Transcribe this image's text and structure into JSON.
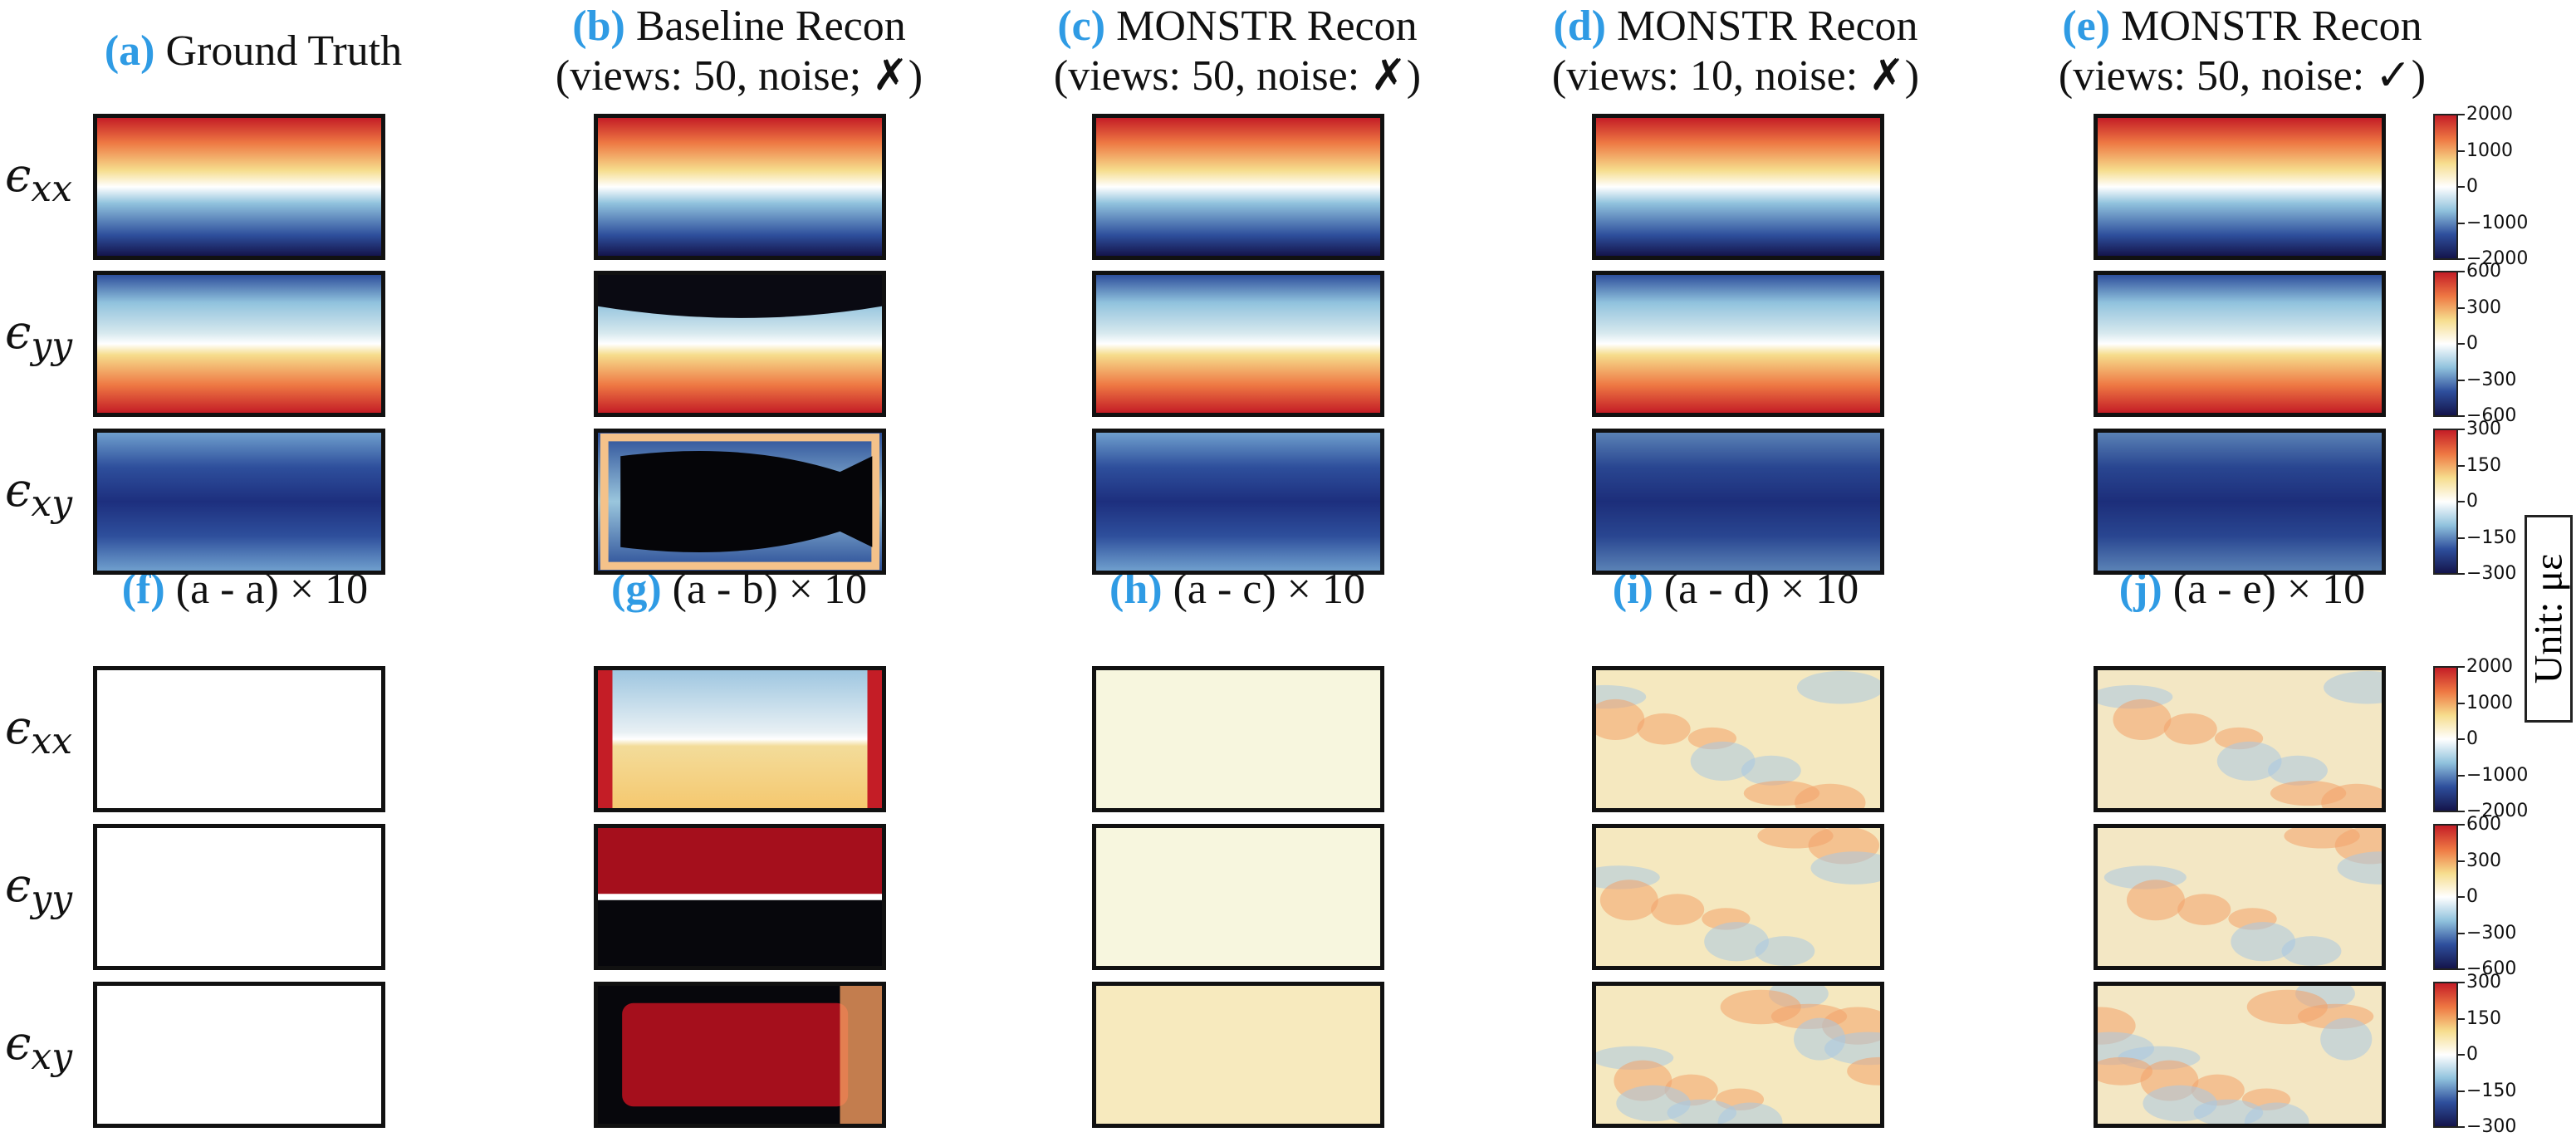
{
  "columns_top": [
    {
      "tag": "(a)",
      "line1": "Ground Truth",
      "line2": ""
    },
    {
      "tag": "(b)",
      "line1": "Baseline Recon",
      "line2": "(views: 50, noise; ✗)"
    },
    {
      "tag": "(c)",
      "line1": "MONSTR Recon",
      "line2": "(views: 50, noise: ✗)"
    },
    {
      "tag": "(d)",
      "line1": "MONSTR Recon",
      "line2": "(views: 10, noise: ✗)"
    },
    {
      "tag": "(e)",
      "line1": "MONSTR Recon",
      "line2": "(views: 50, noise: ✓)"
    }
  ],
  "columns_bottom": [
    {
      "tag": "(f)",
      "label": "(a - a) × 10"
    },
    {
      "tag": "(g)",
      "label": "(a - b) × 10"
    },
    {
      "tag": "(h)",
      "label": "(a - c) × 10"
    },
    {
      "tag": "(i)",
      "label": "(a - d) × 10"
    },
    {
      "tag": "(j)",
      "label": "(a - e) × 10"
    }
  ],
  "row_labels": [
    {
      "base": "ϵ",
      "sub": "xx"
    },
    {
      "base": "ϵ",
      "sub": "yy"
    },
    {
      "base": "ϵ",
      "sub": "xy"
    },
    {
      "base": "ϵ",
      "sub": "xx"
    },
    {
      "base": "ϵ",
      "sub": "yy"
    },
    {
      "base": "ϵ",
      "sub": "xy"
    }
  ],
  "colorbars": [
    {
      "ticks": [
        "2000",
        "1000",
        "0",
        "−1000",
        "−2000"
      ]
    },
    {
      "ticks": [
        "600",
        "300",
        "0",
        "−300",
        "−600"
      ]
    },
    {
      "ticks": [
        "300",
        "150",
        "0",
        "−150",
        "−300"
      ]
    },
    {
      "ticks": [
        "2000",
        "1000",
        "0",
        "−1000",
        "−2000"
      ]
    },
    {
      "ticks": [
        "600",
        "300",
        "0",
        "−300",
        "−600"
      ]
    },
    {
      "ticks": [
        "300",
        "150",
        "0",
        "−150",
        "−300"
      ]
    }
  ],
  "unit_label": "Unit: με",
  "colors": {
    "accent_tag": "#2f9be4",
    "colormap": [
      "#14144b",
      "#2e4f9c",
      "#90c2dd",
      "#ffffff",
      "#f6dd8d",
      "#ee7843",
      "#c41d26"
    ]
  }
}
